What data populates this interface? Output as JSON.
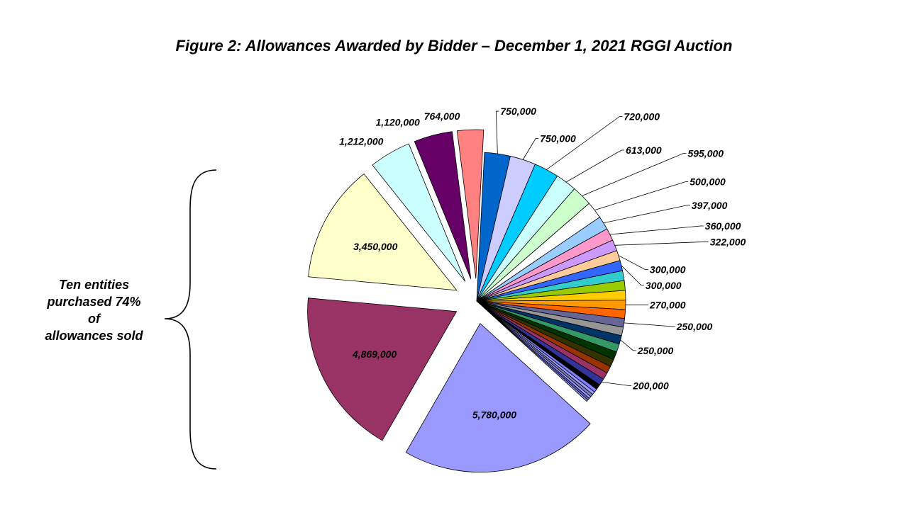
{
  "title": "Figure 2: Allowances Awarded by Bidder – December 1, 2021 RGGI Auction",
  "side_note": {
    "lines": [
      "Ten entities",
      "purchased 74%",
      "of",
      "allowances sold"
    ]
  },
  "chart_data": {
    "type": "pie",
    "title": "Figure 2: Allowances Awarded by Bidder – December 1, 2021 RGGI Auction",
    "slices": [
      {
        "value": 750000,
        "label": "750,000",
        "color": "#0066cc"
      },
      {
        "value": 750000,
        "label": "750,000",
        "color": "#ccccff"
      },
      {
        "value": 720000,
        "label": "720,000",
        "color": "#00ccff"
      },
      {
        "value": 613000,
        "label": "613,000",
        "color": "#ccffff"
      },
      {
        "value": 595000,
        "label": "595,000",
        "color": "#ccffcc"
      },
      {
        "value": 500000,
        "label": "500,000",
        "color": "#ffffff"
      },
      {
        "value": 397000,
        "label": "397,000",
        "color": "#99ccff"
      },
      {
        "value": 360000,
        "label": "360,000",
        "color": "#ff99cc"
      },
      {
        "value": 322000,
        "label": "322,000",
        "color": "#cc99ff"
      },
      {
        "value": 300000,
        "label": "300,000",
        "color": "#ffcc99"
      },
      {
        "value": 300000,
        "label": "300,000",
        "color": "#3366ff"
      },
      {
        "value": 290000,
        "label": "",
        "color": "#33cccc"
      },
      {
        "value": 285000,
        "label": "",
        "color": "#99cc00"
      },
      {
        "value": 280000,
        "label": "",
        "color": "#ffcc00"
      },
      {
        "value": 270000,
        "label": "270,000",
        "color": "#ff9900"
      },
      {
        "value": 260000,
        "label": "",
        "color": "#ff6600"
      },
      {
        "value": 250000,
        "label": "250,000",
        "color": "#666699"
      },
      {
        "value": 250000,
        "label": "",
        "color": "#969696"
      },
      {
        "value": 250000,
        "label": "250,000",
        "color": "#003366"
      },
      {
        "value": 240000,
        "label": "",
        "color": "#339966"
      },
      {
        "value": 230000,
        "label": "",
        "color": "#003300"
      },
      {
        "value": 220000,
        "label": "",
        "color": "#333300"
      },
      {
        "value": 210000,
        "label": "",
        "color": "#993300"
      },
      {
        "value": 205000,
        "label": "",
        "color": "#993366"
      },
      {
        "value": 200000,
        "label": "200,000",
        "color": "#333399"
      },
      {
        "value": 150000,
        "label": "",
        "color": "#000000"
      },
      {
        "value": 100000,
        "label": "",
        "color": "#8080ff"
      },
      {
        "value": 90000,
        "label": "",
        "color": "#9999ff"
      },
      {
        "value": 80000,
        "label": "",
        "color": "#8080c0"
      },
      {
        "value": 70000,
        "label": "",
        "color": "#9999ff"
      },
      {
        "value": 60000,
        "label": "",
        "color": "#6666cc"
      },
      {
        "value": 50000,
        "label": "",
        "color": "#9999ff"
      },
      {
        "value": 5780000,
        "label": "5,780,000",
        "color": "#9999ff",
        "exploded": true
      },
      {
        "value": 4869000,
        "label": "4,869,000",
        "color": "#993366",
        "exploded": true
      },
      {
        "value": 3450000,
        "label": "3,450,000",
        "color": "#ffffcc",
        "exploded": true
      },
      {
        "value": 1212000,
        "label": "1,212,000",
        "color": "#ccffff",
        "exploded": true
      },
      {
        "value": 1120000,
        "label": "1,120,000",
        "color": "#660066",
        "exploded": true
      },
      {
        "value": 764000,
        "label": "764,000",
        "color": "#ff8080",
        "exploded": true
      }
    ]
  }
}
